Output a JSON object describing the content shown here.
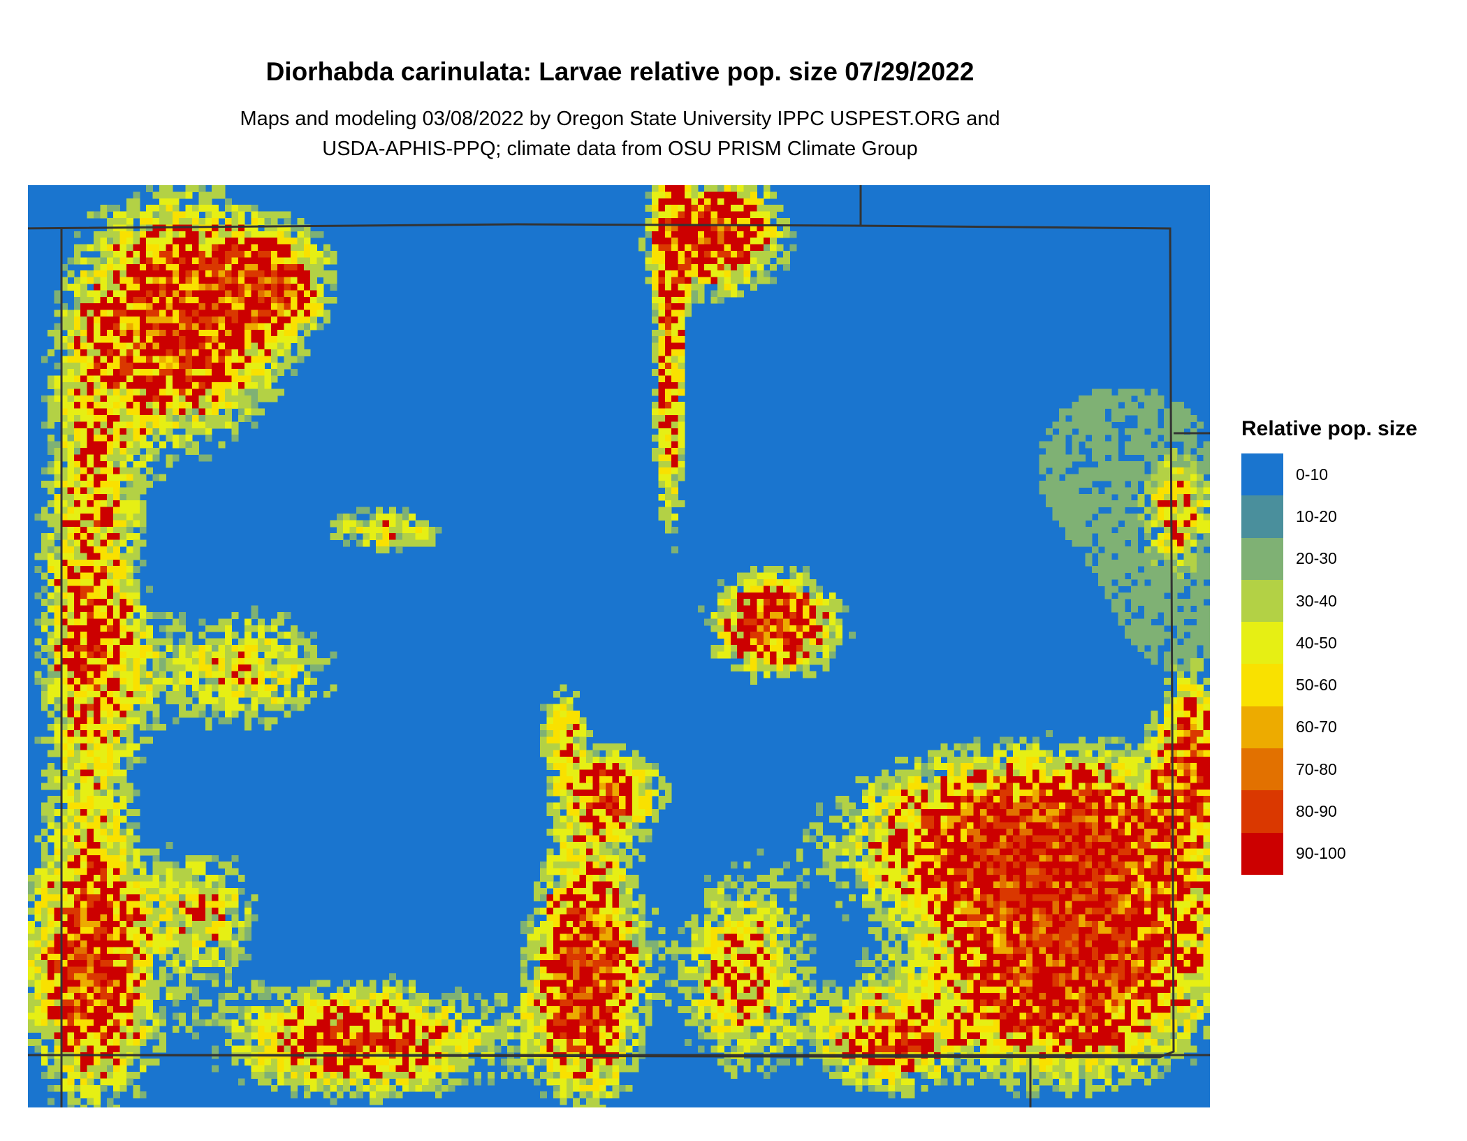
{
  "chart_data": {
    "type": "heatmap",
    "title": "Diorhabda carinulata: Larvae relative pop. size 07/29/2022",
    "subtitle": [
      "Maps and modeling 03/08/2022 by Oregon State University IPPC USPEST.ORG and",
      "USDA-APHIS-PPQ; climate data from OSU PRISM Climate Group"
    ],
    "legend": {
      "title": "Relative pop. size",
      "placement": "right",
      "classes": [
        {
          "label": "0-10",
          "color": "#1a75cf"
        },
        {
          "label": "10-20",
          "color": "#4a8f9c"
        },
        {
          "label": "20-30",
          "color": "#7fb174"
        },
        {
          "label": "30-40",
          "color": "#b3d145"
        },
        {
          "label": "40-50",
          "color": "#e6ef14"
        },
        {
          "label": "50-60",
          "color": "#f9e100"
        },
        {
          "label": "60-70",
          "color": "#edab00"
        },
        {
          "label": "70-80",
          "color": "#e27100"
        },
        {
          "label": "80-90",
          "color": "#da3800"
        },
        {
          "label": "90-100",
          "color": "#cc0000"
        }
      ]
    },
    "boundary_color": "#333333"
  }
}
